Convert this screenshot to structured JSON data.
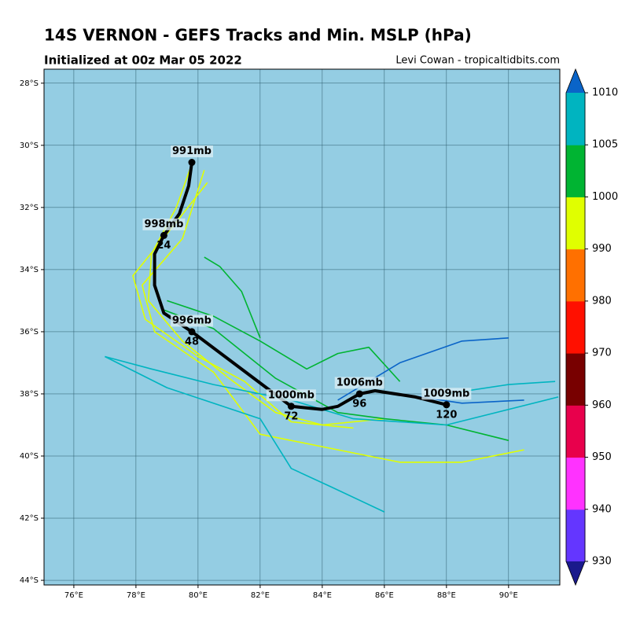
{
  "chart_data": {
    "type": "track",
    "title": "14S VERNON - GEFS Tracks and Min. MSLP (hPa)",
    "subtitle": "Initialized at 00z Mar 05 2022",
    "credit": "Levi Cowan - tropicaltidbits.com",
    "xlim": [
      75.04,
      91.65
    ],
    "ylim": [
      -44.15,
      -27.55
    ],
    "xticks": [
      {
        "value": 76,
        "label": "76°E"
      },
      {
        "value": 78,
        "label": "78°E"
      },
      {
        "value": 80,
        "label": "80°E"
      },
      {
        "value": 82,
        "label": "82°E"
      },
      {
        "value": 84,
        "label": "84°E"
      },
      {
        "value": 86,
        "label": "86°E"
      },
      {
        "value": 88,
        "label": "88°E"
      },
      {
        "value": 90,
        "label": "90°E"
      }
    ],
    "yticks": [
      {
        "value": -28,
        "label": "28°S"
      },
      {
        "value": -30,
        "label": "30°S"
      },
      {
        "value": -32,
        "label": "32°S"
      },
      {
        "value": -34,
        "label": "34°S"
      },
      {
        "value": -36,
        "label": "36°S"
      },
      {
        "value": -38,
        "label": "38°S"
      },
      {
        "value": -40,
        "label": "40°S"
      },
      {
        "value": -42,
        "label": "42°S"
      },
      {
        "value": -44,
        "label": "44°S"
      }
    ],
    "grid": true,
    "background_color": "#94cde3",
    "members": [
      {
        "color": "#e0ff00",
        "lon": [
          79.8,
          79.3,
          78.5,
          78.4,
          79.5,
          81,
          82.5,
          84,
          86
        ],
        "lat": [
          -30.6,
          -32,
          -33.5,
          -35,
          -36.3,
          -37.5,
          -38.6,
          -39,
          -38.8
        ]
      },
      {
        "color": "#e0ff00",
        "lon": [
          80.2,
          79.5,
          78.2,
          78.6,
          80.5,
          82,
          84,
          86.5,
          88.5,
          90.5
        ],
        "lat": [
          -30.8,
          -33,
          -34.5,
          -36,
          -37.3,
          -39.3,
          -39.7,
          -40.2,
          -40.2,
          -39.8
        ]
      },
      {
        "color": "#e0ff00",
        "lon": [
          80.3,
          79.2,
          77.9,
          78.3,
          80,
          81.5,
          83,
          85
        ],
        "lat": [
          -31.2,
          -32.6,
          -34.2,
          -35.6,
          -36.8,
          -37.6,
          -38.9,
          -39.1
        ]
      },
      {
        "color": "#00b432",
        "lon": [
          78.9,
          80.5,
          82.5,
          84.5,
          86,
          88,
          90
        ],
        "lat": [
          -35.3,
          -35.9,
          -37.5,
          -38.6,
          -38.8,
          -39,
          -39.5
        ]
      },
      {
        "color": "#00b432",
        "lon": [
          79,
          80.5,
          82,
          83.5,
          84.5,
          85.5,
          86.5
        ],
        "lat": [
          -35,
          -35.5,
          -36.3,
          -37.2,
          -36.7,
          -36.5,
          -37.6
        ]
      },
      {
        "color": "#00b432",
        "lon": [
          80.2,
          80.7,
          81.4,
          82
        ],
        "lat": [
          -33.6,
          -33.9,
          -34.7,
          -36.2
        ]
      },
      {
        "color": "#00b4c0",
        "lon": [
          77,
          78.5,
          80.5,
          83,
          85,
          88,
          91.6
        ],
        "lat": [
          -36.8,
          -37.2,
          -37.7,
          -38.2,
          -38.8,
          -39,
          -38.1
        ]
      },
      {
        "color": "#00b4c0",
        "lon": [
          77,
          79,
          82,
          83,
          84.3,
          86
        ],
        "lat": [
          -36.8,
          -37.8,
          -38.8,
          -40.4,
          -41,
          -41.8
        ]
      },
      {
        "color": "#00b4c0",
        "lon": [
          88,
          90,
          91.5
        ],
        "lat": [
          -38,
          -37.7,
          -37.6
        ]
      },
      {
        "color": "#0a64c8",
        "lon": [
          84.5,
          86.5,
          88.5,
          90
        ],
        "lat": [
          -38.2,
          -37,
          -36.3,
          -36.2
        ]
      },
      {
        "color": "#0a64c8",
        "lon": [
          86.5,
          88.5,
          90.5
        ],
        "lat": [
          -38,
          -38.3,
          -38.2
        ]
      }
    ],
    "mean_track": {
      "color": "#000000",
      "lon": [
        79.8,
        79.7,
        79.4,
        78.9,
        78.6,
        78.6,
        78.9,
        79.8,
        81,
        82.2,
        83,
        84,
        84.5,
        85.2,
        85.7,
        87,
        88
      ],
      "lat": [
        -30.55,
        -31.3,
        -32.2,
        -32.9,
        -33.5,
        -34.5,
        -35.4,
        -36,
        -36.9,
        -37.8,
        -38.4,
        -38.5,
        -38.4,
        -38,
        -37.9,
        -38.1,
        -38.35
      ]
    },
    "points": [
      {
        "lon": 79.8,
        "lat": -30.55,
        "label": "991mb"
      },
      {
        "lon": 78.9,
        "lat": -32.9,
        "label": "998mb",
        "hour": 24
      },
      {
        "lon": 79.8,
        "lat": -36,
        "label": "996mb",
        "hour": 48
      },
      {
        "lon": 83,
        "lat": -38.4,
        "label": "1000mb",
        "hour": 72
      },
      {
        "lon": 85.2,
        "lat": -38,
        "label": "1006mb",
        "hour": 96
      },
      {
        "lon": 88,
        "lat": -38.35,
        "label": "1009mb",
        "hour": 120
      }
    ],
    "colorbar": {
      "boundaries": [
        930,
        940,
        950,
        960,
        970,
        980,
        990,
        1000,
        1005,
        1010
      ],
      "colors": [
        "#6436ff",
        "#ff32ff",
        "#e8004c",
        "#780000",
        "#ff1000",
        "#ff7000",
        "#e0ff00",
        "#00b432",
        "#00b4c0"
      ],
      "below_color": "#1a1a8c",
      "above_color": "#0a64c8"
    }
  }
}
